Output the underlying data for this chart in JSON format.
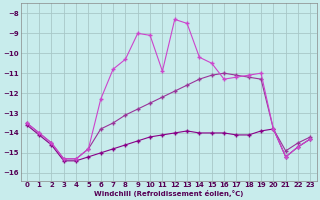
{
  "xlabel": "Windchill (Refroidissement éolien,°C)",
  "bg_color": "#c8ecec",
  "grid_color": "#a8c8c8",
  "xlim": [
    -0.5,
    23.5
  ],
  "ylim": [
    -16.4,
    -7.5
  ],
  "yticks": [
    -16,
    -15,
    -14,
    -13,
    -12,
    -11,
    -10,
    -9,
    -8
  ],
  "xticks": [
    0,
    1,
    2,
    3,
    4,
    5,
    6,
    7,
    8,
    9,
    10,
    11,
    12,
    13,
    14,
    15,
    16,
    17,
    18,
    19,
    20,
    21,
    22,
    23
  ],
  "line_wavy_color": "#cc44cc",
  "line_diag_color": "#993399",
  "line_flat_color": "#880088",
  "line_wavy_x": [
    0,
    1,
    2,
    3,
    4,
    5,
    6,
    7,
    8,
    9,
    10,
    11,
    12,
    13,
    14,
    15,
    16,
    17,
    18,
    19,
    20,
    21,
    22,
    23
  ],
  "line_wavy_y": [
    -13.5,
    -14.0,
    -14.5,
    -15.3,
    -15.3,
    -14.8,
    -12.3,
    -10.8,
    -10.3,
    -9.0,
    -9.1,
    -10.9,
    -8.3,
    -8.5,
    -10.2,
    -10.5,
    -11.3,
    -11.2,
    -11.1,
    -11.0,
    -13.8,
    -15.2,
    -14.7,
    -14.3
  ],
  "line_diag_x": [
    0,
    1,
    2,
    3,
    4,
    5,
    6,
    7,
    8,
    9,
    10,
    11,
    12,
    13,
    14,
    15,
    16,
    17,
    18,
    19,
    20,
    21,
    22,
    23
  ],
  "line_diag_y": [
    -13.5,
    -14.0,
    -14.5,
    -15.3,
    -15.3,
    -14.8,
    -13.8,
    -13.5,
    -13.1,
    -12.8,
    -12.5,
    -12.2,
    -11.9,
    -11.6,
    -11.3,
    -11.1,
    -11.0,
    -11.1,
    -11.2,
    -11.3,
    -13.8,
    -14.9,
    -14.5,
    -14.2
  ],
  "line_flat_x": [
    0,
    1,
    2,
    3,
    4,
    5,
    6,
    7,
    8,
    9,
    10,
    11,
    12,
    13,
    14,
    15,
    16,
    17,
    18,
    19,
    20,
    21,
    22,
    23
  ],
  "line_flat_y": [
    -13.6,
    -14.1,
    -14.6,
    -15.4,
    -15.4,
    -15.2,
    -15.0,
    -14.8,
    -14.6,
    -14.4,
    -14.2,
    -14.1,
    -14.0,
    -13.9,
    -14.0,
    -14.0,
    -14.0,
    -14.1,
    -14.1,
    -13.9,
    -13.8,
    -15.2,
    -14.7,
    -14.3
  ]
}
